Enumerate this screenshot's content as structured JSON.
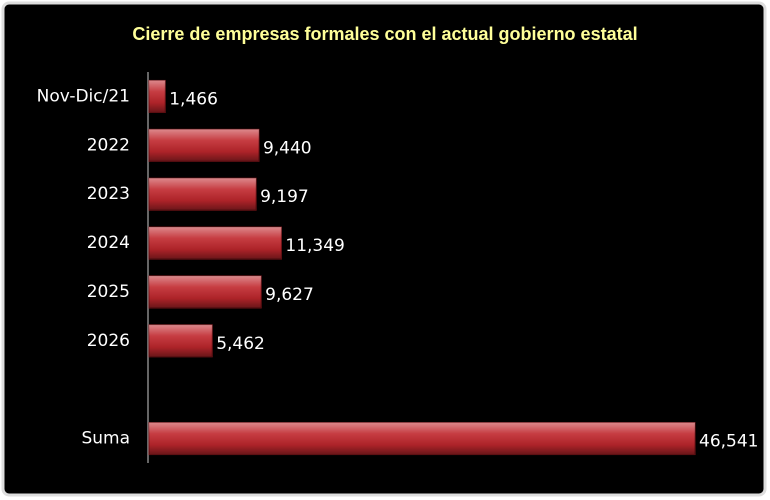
{
  "chart_data": {
    "type": "bar",
    "orientation": "horizontal",
    "title": "Cierre de empresas formales con el actual gobierno estatal",
    "categories": [
      "Nov-Dic/21",
      "2022",
      "2023",
      "2024",
      "2025",
      "2026",
      null,
      "Suma"
    ],
    "values": [
      1466,
      9440,
      9197,
      11349,
      9627,
      5462,
      null,
      46541
    ],
    "value_labels": [
      "1,466",
      "9,440",
      "9,197",
      "11,349",
      "9,627",
      "5,462",
      null,
      "46,541"
    ],
    "color": "#c0272d"
  }
}
